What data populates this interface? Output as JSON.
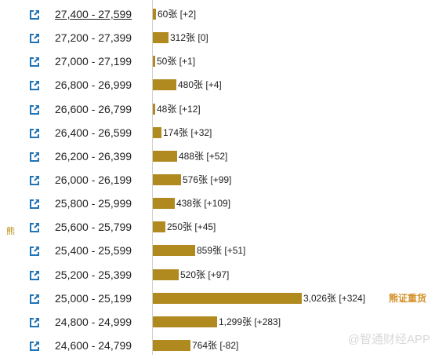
{
  "side_label": "熊",
  "watermark": "@智通财经APP",
  "colors": {
    "bar": "#b08a1f",
    "annotation": "#d4902a",
    "link_icon": "#1f73b7"
  },
  "icon_name": "external-link-icon",
  "chart_data": {
    "type": "bar",
    "orientation": "horizontal",
    "categories": [
      "27,400 - 27,599",
      "27,200 - 27,399",
      "27,000 - 27,199",
      "26,800 - 26,999",
      "26,600 - 26,799",
      "26,400 - 26,599",
      "26,200 - 26,399",
      "26,000 - 26,199",
      "25,800 - 25,999",
      "25,600 - 25,799",
      "25,400 - 25,599",
      "25,200 - 25,399",
      "25,000 - 25,199",
      "24,800 - 24,999",
      "24,600 - 24,799"
    ],
    "values": [
      60,
      312,
      50,
      480,
      48,
      174,
      488,
      576,
      438,
      250,
      859,
      520,
      3026,
      1299,
      764
    ],
    "labels": [
      "60张 [+2]",
      "312张 [0]",
      "50张 [+1]",
      "480张 [+4]",
      "48张 [+12]",
      "174张 [+32]",
      "488张 [+52]",
      "576张 [+99]",
      "438张 [+109]",
      "250张 [+45]",
      "859张 [+51]",
      "520张 [+97]",
      "3,026张 [+324]",
      "1,299张 [+283]",
      "764张 [-82]"
    ],
    "annotation": {
      "row": 12,
      "text": "熊证重货"
    },
    "xlim": [
      0,
      3026
    ]
  }
}
